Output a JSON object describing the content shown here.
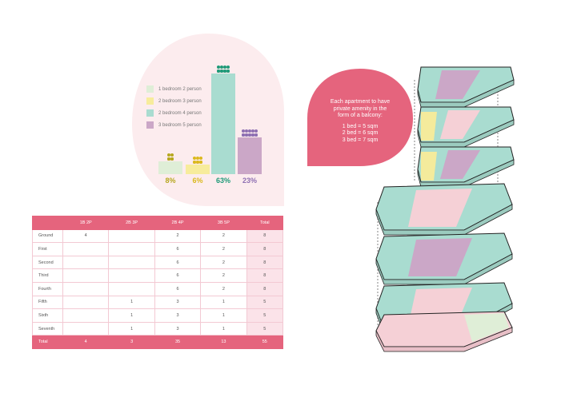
{
  "chart_data": {
    "type": "bar",
    "categories": [
      "1 bedroom 2 person",
      "2 bedroom 3 person",
      "2 bedroom 4 person",
      "3 bedroom 5 person"
    ],
    "values": [
      8,
      6,
      63,
      23
    ],
    "percent_labels": [
      "8%",
      "6%",
      "63%",
      "23%"
    ],
    "colors": [
      "#dfeed7",
      "#f7ec9c",
      "#a9dcd0",
      "#cba7c7"
    ],
    "label_colors": [
      "#b6a71e",
      "#dbb91d",
      "#1f9a78",
      "#8e6fb2"
    ],
    "ylim": [
      0,
      70
    ]
  },
  "legend": {
    "items": [
      "1 bedroom 2 person",
      "2 bedroom 3 person",
      "2 bedroom 4 person",
      "3 bedroom 5 person"
    ]
  },
  "callout": {
    "line1": "Each apartment to have",
    "line2": "private amenity in the",
    "line3": "form of a balcony:",
    "bed1": "1 bed = 5 sqm",
    "bed2": "2 bed = 6 sqm",
    "bed3": "3 bed = 7 sqm"
  },
  "table": {
    "headers": [
      "",
      "1B 2P",
      "2B 3P",
      "2B 4P",
      "3B 5P",
      "Total"
    ],
    "rows": [
      [
        "Ground",
        "4",
        "",
        "2",
        "2",
        "8"
      ],
      [
        "First",
        "",
        "",
        "6",
        "2",
        "8"
      ],
      [
        "Second",
        "",
        "",
        "6",
        "2",
        "8"
      ],
      [
        "Third",
        "",
        "",
        "6",
        "2",
        "8"
      ],
      [
        "Fourth",
        "",
        "",
        "6",
        "2",
        "8"
      ],
      [
        "Fifth",
        "",
        "1",
        "3",
        "1",
        "5"
      ],
      [
        "Sixth",
        "",
        "1",
        "3",
        "1",
        "5"
      ],
      [
        "Seventh",
        "",
        "1",
        "3",
        "1",
        "5"
      ]
    ],
    "footer": [
      "Total",
      "4",
      "3",
      "35",
      "13",
      "55"
    ]
  },
  "colors": {
    "pink_accent": "#e5647d",
    "blob_bg": "#fcecee",
    "teal": "#9fd8cb",
    "mauve": "#c9a7c9",
    "light_pink": "#f5d0d6",
    "yellow": "#f4eb9c",
    "outline": "#222222"
  }
}
